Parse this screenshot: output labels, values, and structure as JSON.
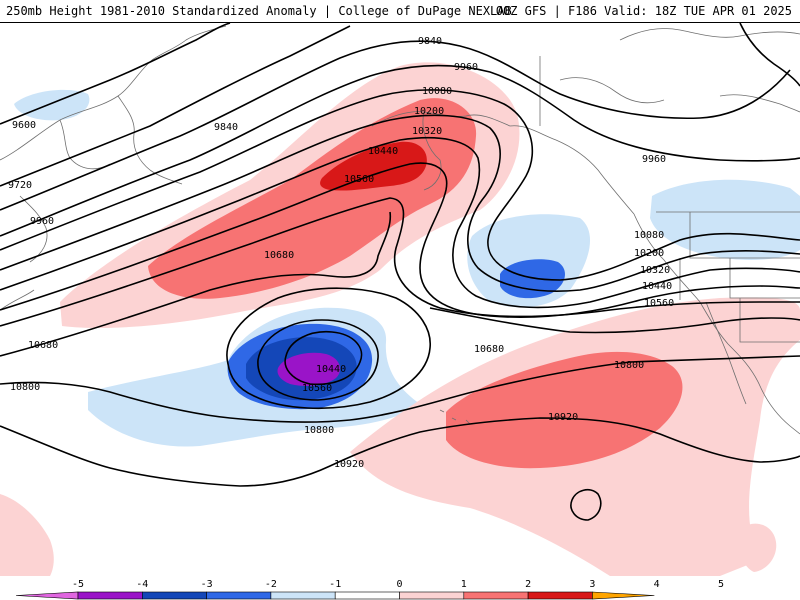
{
  "header": {
    "title_left": "250mb Height 1981-2010 Standardized Anomaly | College of DuPage NEXLAB",
    "title_right": "00Z GFS | F186 Valid: 18Z TUE APR 01 2025"
  },
  "contour_labels": [
    "9600",
    "9720",
    "9840",
    "9840",
    "9960",
    "9960",
    "9960",
    "10080",
    "10080",
    "10200",
    "10200",
    "10320",
    "10320",
    "10440",
    "10440",
    "10440",
    "10560",
    "10560",
    "10560",
    "10680",
    "10680",
    "10680",
    "10800",
    "10800",
    "10800",
    "10920",
    "10920"
  ],
  "colorbar": {
    "ticks": [
      "-5",
      "-4",
      "-3",
      "-2",
      "-1",
      "0",
      "1",
      "2",
      "3",
      "4",
      "5"
    ],
    "colors": [
      "#e066e0",
      "#9a14c8",
      "#1447b8",
      "#2f68e6",
      "#cce4f8",
      "#ffffff",
      "#fcd3d3",
      "#f77373",
      "#d81818",
      "#ffa500"
    ]
  }
}
